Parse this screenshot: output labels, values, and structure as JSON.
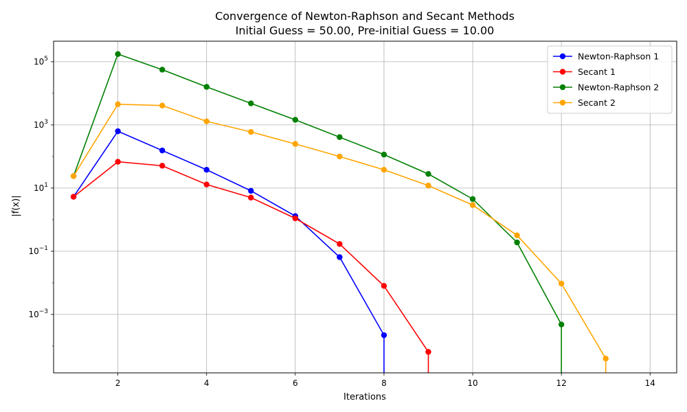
{
  "chart_data": {
    "type": "line",
    "title": "Convergence of Newton-Raphson and Secant Methods",
    "subtitle": "Initial Guess = 50.00, Pre-initial Guess = 10.00",
    "xlabel": "Iterations",
    "ylabel": "|f(x)|",
    "xlim": [
      0.55,
      14.6
    ],
    "yscale": "log",
    "ylim_exp": [
      -4.85,
      5.65
    ],
    "x_ticks": [
      2,
      4,
      6,
      8,
      10,
      12,
      14
    ],
    "y_ticks": [
      {
        "exp": 5,
        "base": "10",
        "sup": "5"
      },
      {
        "exp": 3,
        "base": "10",
        "sup": "3"
      },
      {
        "exp": 1,
        "base": "10",
        "sup": "1"
      },
      {
        "exp": -1,
        "base": "10",
        "sup": "−1"
      },
      {
        "exp": -3,
        "base": "10",
        "sup": "−3"
      }
    ],
    "grid": true,
    "legend_position": "top-right",
    "series": [
      {
        "name": "Newton-Raphson 1",
        "color": "#0000ff",
        "x": [
          1,
          2,
          3,
          4,
          5,
          6,
          7,
          8,
          8
        ],
        "y": [
          5.3,
          630,
          155,
          38,
          8.2,
          1.3,
          0.065,
          0.00022,
          0
        ]
      },
      {
        "name": "Secant 1",
        "color": "#ff0000",
        "x": [
          1,
          2,
          3,
          4,
          5,
          6,
          7,
          8,
          9,
          9
        ],
        "y": [
          5.3,
          68,
          51,
          13,
          5,
          1.1,
          0.17,
          0.008,
          6.5e-05,
          0
        ]
      },
      {
        "name": "Newton-Raphson 2",
        "color": "#008000",
        "x": [
          1,
          2,
          3,
          4,
          5,
          6,
          7,
          8,
          9,
          10,
          11,
          12,
          12
        ],
        "y": [
          24,
          175000,
          56000,
          16000,
          4800,
          1450,
          410,
          115,
          28,
          4.5,
          0.19,
          0.00048,
          0
        ]
      },
      {
        "name": "Secant 2",
        "color": "#ffa500",
        "x": [
          1,
          2,
          3,
          4,
          5,
          6,
          7,
          8,
          9,
          10,
          11,
          12,
          13,
          13
        ],
        "y": [
          24,
          4500,
          4100,
          1300,
          600,
          250,
          100,
          38,
          12,
          2.9,
          0.32,
          0.0095,
          4e-05,
          0
        ]
      }
    ]
  }
}
